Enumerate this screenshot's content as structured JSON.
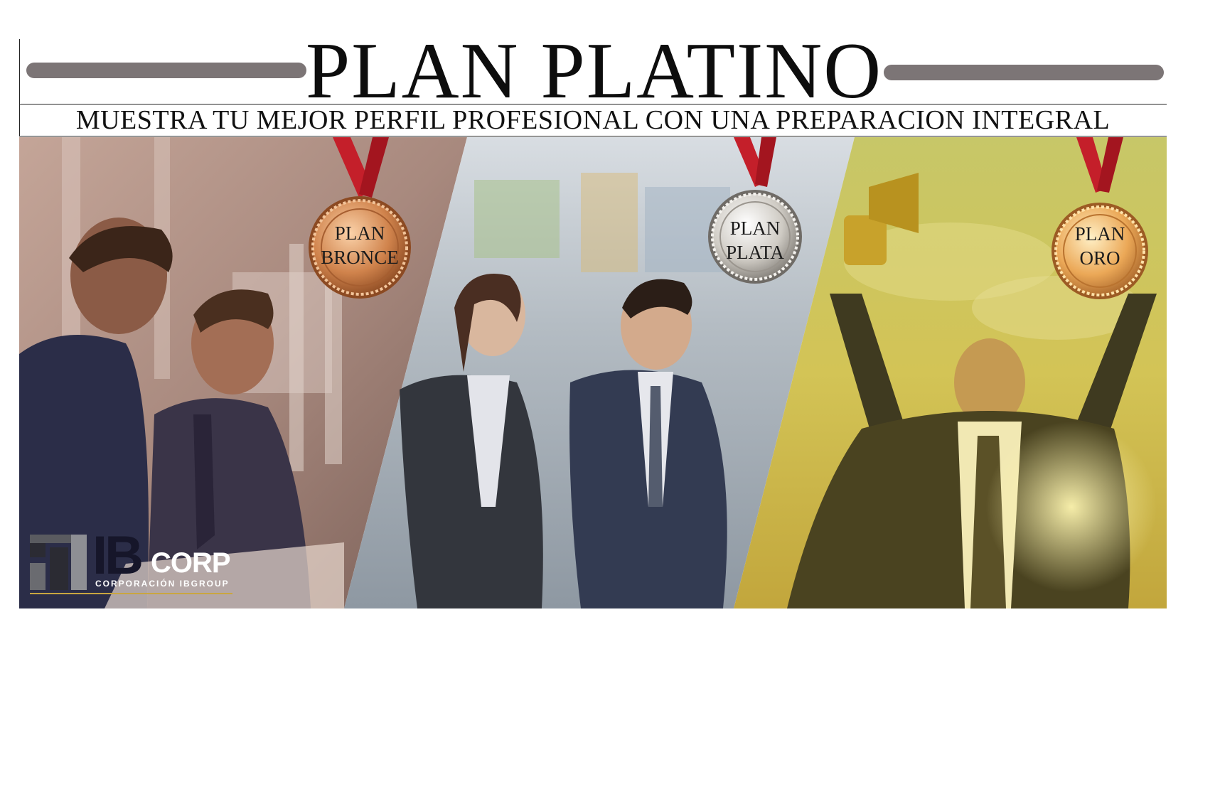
{
  "header": {
    "title": "PLAN PLATINO",
    "subtitle": "MUESTRA TU MEJOR PERFIL PROFESIONAL CON UNA PREPARACION INTEGRAL"
  },
  "medals": [
    {
      "line1": "PLAN",
      "line2": "BRONCE",
      "tier": "bronze-medal-icon",
      "color": "#c87a45"
    },
    {
      "line1": "PLAN",
      "line2": "PLATA",
      "tier": "silver-medal-icon",
      "color": "#c9c6c0"
    },
    {
      "line1": "PLAN",
      "line2": "ORO",
      "tier": "gold-medal-icon",
      "color": "#e8a74a"
    }
  ],
  "logo": {
    "ib": "IB",
    "corp": "CORP",
    "tagline": "CORPORACIÓN IBGROUP"
  },
  "colors": {
    "bar_gray": "#7c7576",
    "panel_bronze": "#9a7a6f",
    "panel_silver": "#b7bec6",
    "panel_gold": "#c8b94a",
    "ribbon_red": "#c41f2a"
  }
}
